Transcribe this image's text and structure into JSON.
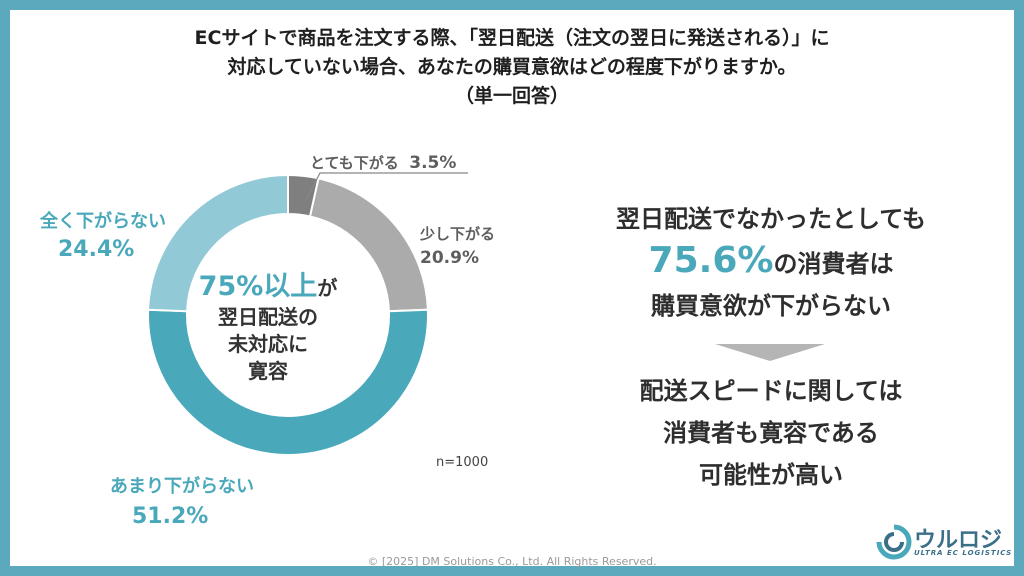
{
  "title": {
    "line1": "ECサイトで商品を注文する際、「翌日配送（注文の翌日に発送される）」に",
    "line2": "対応していない場合、あなたの購買意欲はどの程度下がりますか。",
    "line3": "（単一回答）"
  },
  "chart_data": {
    "type": "pie",
    "donut": true,
    "categories": [
      "とても下がる",
      "少し下がる",
      "あまり下がらない",
      "全く下がらない"
    ],
    "values": [
      3.5,
      20.9,
      51.2,
      24.4
    ],
    "labels": [
      "3.5%",
      "20.9%",
      "51.2%",
      "24.4%"
    ],
    "colors": [
      "#7f7f7f",
      "#ababab",
      "#4aa8bb",
      "#92c9d6"
    ],
    "sample_size_text": "n=1000"
  },
  "center": {
    "line1_big": "75%以上",
    "line1_small": "が",
    "line2": "翌日配送の",
    "line3": "未対応に",
    "line4": "寛容"
  },
  "summary": {
    "line1": "翌日配送でなかったとしても",
    "line2_pct": "75.6%",
    "line2_rest": "の消費者は",
    "line3": "購買意欲が下がらない",
    "line4": "配送スピードに関しては",
    "line5": "消費者も寛容である",
    "line6": "可能性が高い"
  },
  "footer": "© [2025] DM Solutions Co., Ltd. All Rights Reserved.",
  "logo": {
    "name": "ウルロジ",
    "tagline": "ULTRA EC LOGISTICS"
  }
}
